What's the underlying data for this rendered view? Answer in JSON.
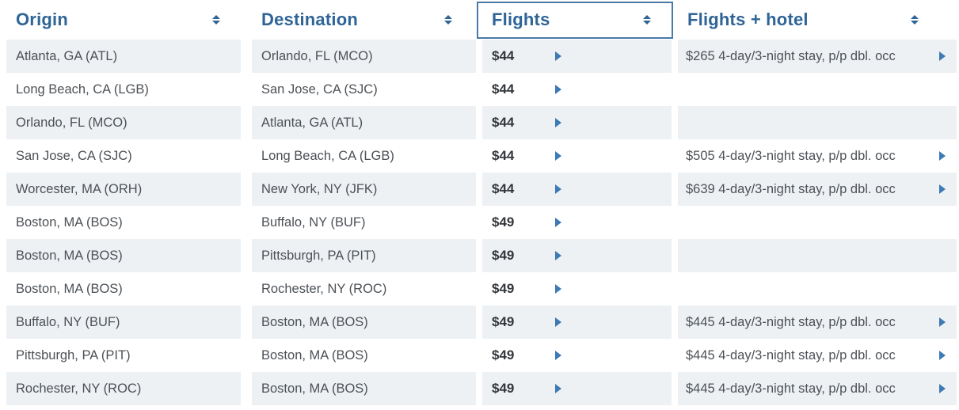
{
  "table": {
    "columns": [
      {
        "label": "Origin",
        "sortable": true,
        "active": false
      },
      {
        "label": "Destination",
        "sortable": true,
        "active": false
      },
      {
        "label": "Flights",
        "sortable": true,
        "active": true
      },
      {
        "label": "Flights + hotel",
        "sortable": true,
        "active": false
      }
    ],
    "rows": [
      {
        "origin": "Atlanta, GA (ATL)",
        "destination": "Orlando, FL (MCO)",
        "flight_price": "$44",
        "package": "$265 4-day/3-night stay, p/p dbl. occ"
      },
      {
        "origin": "Long Beach, CA (LGB)",
        "destination": "San Jose, CA (SJC)",
        "flight_price": "$44",
        "package": ""
      },
      {
        "origin": "Orlando, FL (MCO)",
        "destination": "Atlanta, GA (ATL)",
        "flight_price": "$44",
        "package": ""
      },
      {
        "origin": "San Jose, CA (SJC)",
        "destination": "Long Beach, CA (LGB)",
        "flight_price": "$44",
        "package": "$505 4-day/3-night stay, p/p dbl. occ"
      },
      {
        "origin": "Worcester, MA (ORH)",
        "destination": "New York, NY (JFK)",
        "flight_price": "$44",
        "package": "$639 4-day/3-night stay, p/p dbl. occ"
      },
      {
        "origin": "Boston, MA (BOS)",
        "destination": "Buffalo, NY (BUF)",
        "flight_price": "$49",
        "package": ""
      },
      {
        "origin": "Boston, MA (BOS)",
        "destination": "Pittsburgh, PA (PIT)",
        "flight_price": "$49",
        "package": ""
      },
      {
        "origin": "Boston, MA (BOS)",
        "destination": "Rochester, NY (ROC)",
        "flight_price": "$49",
        "package": ""
      },
      {
        "origin": "Buffalo, NY (BUF)",
        "destination": "Boston, MA (BOS)",
        "flight_price": "$49",
        "package": "$445 4-day/3-night stay, p/p dbl. occ"
      },
      {
        "origin": "Pittsburgh, PA (PIT)",
        "destination": "Boston, MA (BOS)",
        "flight_price": "$49",
        "package": "$445 4-day/3-night stay, p/p dbl. occ"
      },
      {
        "origin": "Rochester, NY (ROC)",
        "destination": "Boston, MA (BOS)",
        "flight_price": "$49",
        "package": "$445 4-day/3-night stay, p/p dbl. occ"
      }
    ]
  },
  "icons": {
    "sort": "sort-updown-icon",
    "link_arrow": "arrow-right-icon"
  },
  "colors": {
    "accent_blue": "#2e6496",
    "link_arrow_blue": "#3e7ab3",
    "active_column_border": "#4879a9",
    "row_stripe": "#eef1f4",
    "body_text": "#4c5156",
    "price_text": "#33373b"
  }
}
